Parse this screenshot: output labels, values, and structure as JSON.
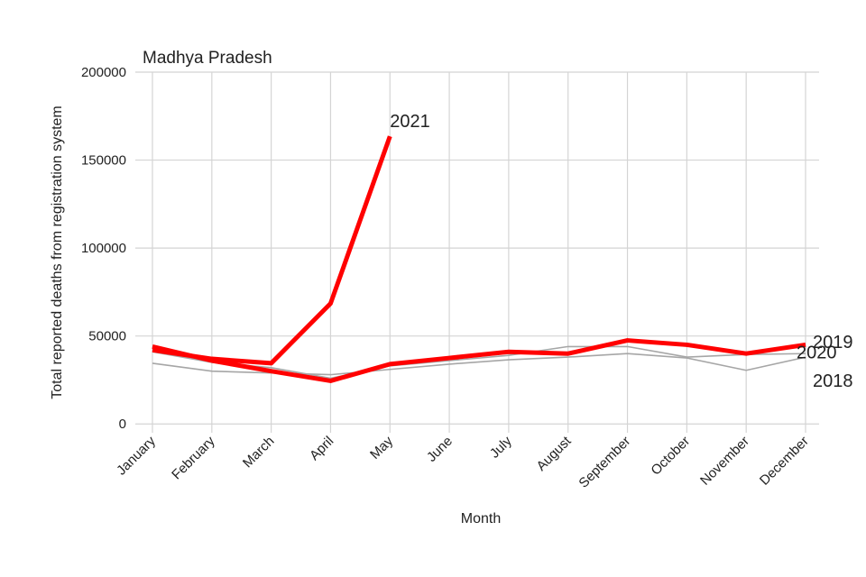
{
  "chart_data": {
    "type": "line",
    "title": "Madhya Pradesh",
    "x_label": "Month",
    "y_label": "Total reported deaths from registration system",
    "categories": [
      "January",
      "February",
      "March",
      "April",
      "May",
      "June",
      "July",
      "August",
      "September",
      "October",
      "November",
      "December"
    ],
    "ylim": [
      -5000,
      200000
    ],
    "yticks": [
      0,
      50000,
      100000,
      150000,
      200000
    ],
    "grid": true,
    "series": [
      {
        "name": "2018",
        "color": "#a6a6a6",
        "values": [
          34500,
          30000,
          29000,
          28000,
          31000,
          34000,
          36500,
          38000,
          40000,
          37500,
          30500,
          38000
        ]
      },
      {
        "name": "2019",
        "color": "#a6a6a6",
        "values": [
          41000,
          35000,
          32000,
          26000,
          33000,
          36000,
          39000,
          44000,
          44000,
          38000,
          39500,
          40000
        ]
      },
      {
        "name": "2020",
        "color": "#ff0000",
        "values": [
          44000,
          36000,
          30000,
          24500,
          34000,
          37500,
          41000,
          40000,
          47500,
          45000,
          40000,
          45000
        ]
      },
      {
        "name": "2021",
        "color": "#ff0000",
        "values": [
          42000,
          37000,
          34500,
          68500,
          163500,
          null,
          null,
          null,
          null,
          null,
          null,
          null
        ]
      }
    ]
  }
}
